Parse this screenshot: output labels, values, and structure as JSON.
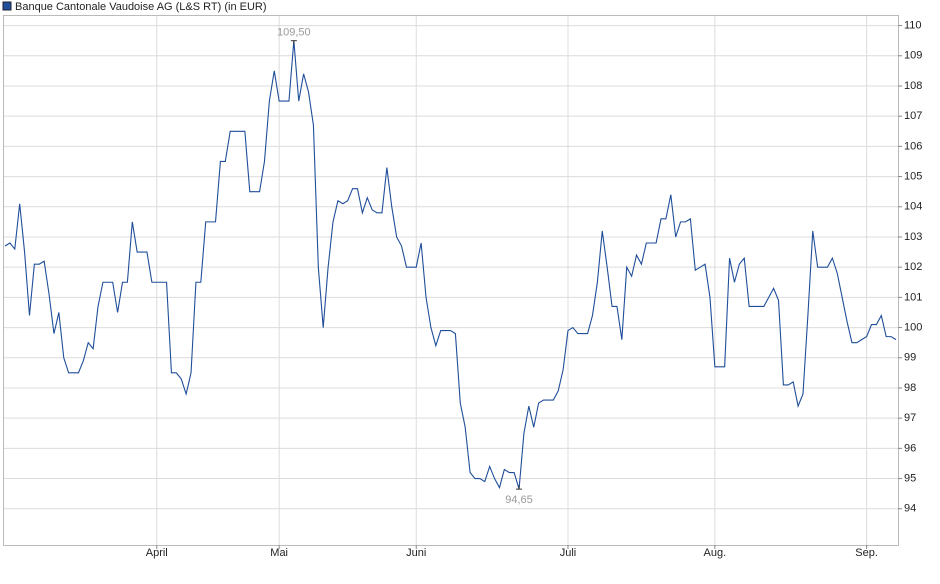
{
  "chart_data": {
    "type": "line",
    "series": [
      {
        "name": "Banque Cantonale Vaudoise AG (L&S RT) (in EUR)",
        "color": "#1f4e9a",
        "values": [
          102.7,
          102.8,
          102.6,
          104.1,
          102.5,
          100.4,
          102.1,
          102.1,
          102.2,
          101.1,
          99.8,
          100.5,
          99.0,
          98.5,
          98.5,
          98.5,
          98.9,
          99.5,
          99.3,
          100.7,
          101.5,
          101.5,
          101.5,
          100.5,
          101.5,
          101.5,
          103.5,
          102.5,
          102.5,
          102.5,
          101.5,
          101.5,
          101.5,
          101.5,
          98.5,
          98.5,
          98.3,
          97.8,
          98.5,
          101.5,
          101.5,
          103.5,
          103.5,
          103.5,
          105.5,
          105.5,
          106.5,
          106.5,
          106.5,
          106.5,
          104.5,
          104.5,
          104.5,
          105.5,
          107.5,
          108.5,
          107.5,
          107.5,
          107.5,
          109.5,
          107.5,
          108.4,
          107.8,
          106.7,
          102.0,
          100.0,
          102.0,
          103.5,
          104.2,
          104.1,
          104.2,
          104.6,
          104.6,
          103.8,
          104.3,
          103.9,
          103.8,
          103.8,
          105.3,
          104.0,
          103.0,
          102.7,
          102.0,
          102.0,
          102.0,
          102.8,
          101.0,
          100.0,
          99.4,
          99.9,
          99.9,
          99.9,
          99.8,
          97.5,
          96.7,
          95.2,
          95.0,
          95.0,
          94.9,
          95.4,
          95.0,
          94.7,
          95.3,
          95.2,
          95.2,
          94.65,
          96.5,
          97.4,
          96.7,
          97.5,
          97.6,
          97.6,
          97.6,
          97.9,
          98.6,
          99.9,
          100.0,
          99.8,
          99.8,
          99.8,
          100.4,
          101.5,
          103.2,
          102.0,
          100.7,
          100.7,
          99.6,
          102.0,
          101.7,
          102.4,
          102.1,
          102.8,
          102.8,
          102.8,
          103.6,
          103.6,
          104.4,
          103.0,
          103.5,
          103.5,
          103.6,
          101.9,
          102.0,
          102.1,
          101.0,
          98.7,
          98.7,
          98.7,
          102.3,
          101.5,
          102.1,
          102.3,
          100.7,
          100.7,
          100.7,
          100.7,
          101.0,
          101.3,
          100.9,
          98.1,
          98.1,
          98.2,
          97.4,
          97.8,
          100.4,
          103.2,
          102.0,
          102.0,
          102.0,
          102.3,
          101.8,
          101.0,
          100.2,
          99.5,
          99.5,
          99.6,
          99.7,
          100.1,
          100.1,
          100.4,
          99.7,
          99.7,
          99.6
        ]
      }
    ],
    "categories": [
      null,
      null,
      null,
      null,
      null,
      null,
      null,
      null,
      null,
      null,
      null,
      null,
      null,
      null,
      null,
      null,
      null,
      null,
      null,
      null,
      null,
      null,
      null,
      null,
      null,
      null,
      null,
      null,
      null,
      null,
      null,
      "April",
      null,
      null,
      null,
      null,
      null,
      null,
      null,
      null,
      null,
      null,
      null,
      null,
      null,
      null,
      null,
      null,
      null,
      null,
      null,
      null,
      null,
      null,
      null,
      null,
      "Mai",
      null,
      null,
      null,
      null,
      null,
      null,
      null,
      null,
      null,
      null,
      null,
      null,
      null,
      null,
      null,
      null,
      null,
      null,
      null,
      null,
      null,
      null,
      null,
      null,
      null,
      null,
      null,
      "Juni",
      null,
      null,
      null,
      null,
      null,
      null,
      null,
      null,
      null,
      null,
      null,
      null,
      null,
      null,
      null,
      null,
      null,
      null,
      null,
      null,
      null,
      null,
      null,
      null,
      null,
      null,
      null,
      null,
      null,
      null,
      "Juli",
      null,
      null,
      null,
      null,
      null,
      null,
      null,
      null,
      null,
      null,
      null,
      null,
      null,
      null,
      null,
      null,
      null,
      null,
      null,
      null,
      null,
      null,
      null,
      null,
      null,
      null,
      null,
      null,
      null,
      "Aug.",
      null,
      null,
      null,
      null,
      null,
      null,
      null,
      null,
      null,
      null,
      null,
      null,
      null,
      null,
      null,
      null,
      null,
      null,
      null,
      null,
      null,
      null,
      null,
      null,
      null,
      null,
      null,
      null,
      null,
      null,
      "Sep.",
      null,
      null,
      null,
      null,
      null,
      null
    ],
    "ylim": [
      92.8,
      110.35
    ],
    "yticks": [
      94,
      95,
      96,
      97,
      98,
      99,
      100,
      101,
      102,
      103,
      104,
      105,
      106,
      107,
      108,
      109,
      110
    ],
    "grid": true,
    "annotations": [
      {
        "text": "109,50",
        "value": 109.5
      },
      {
        "text": "94,65",
        "value": 94.65
      }
    ]
  }
}
